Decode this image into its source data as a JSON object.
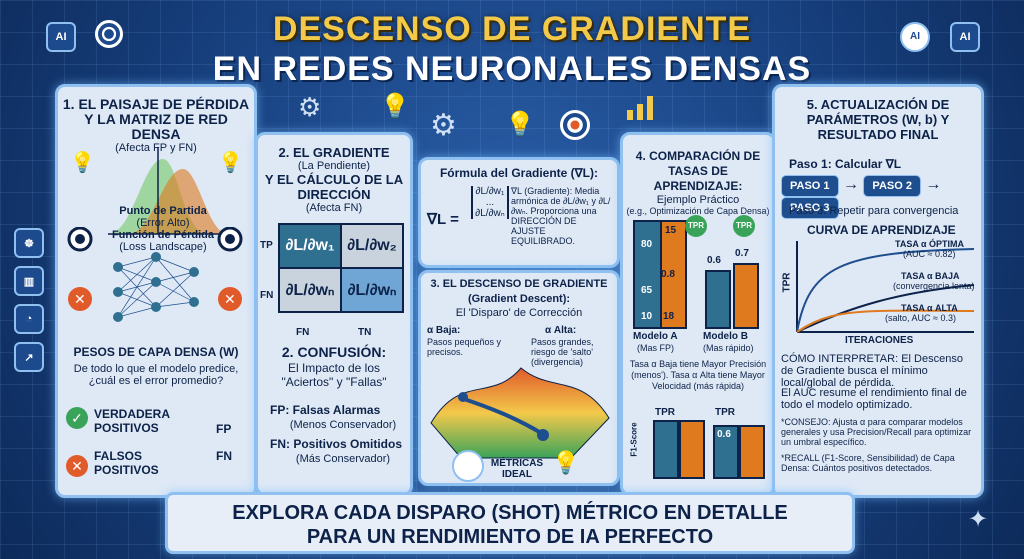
{
  "header": {
    "title_line1": "DESCENSO DE GRADIENTE",
    "title_line2": "EN REDES NEURONALES DENSAS",
    "badge_left": "AI",
    "badge_right": "AI"
  },
  "panel1": {
    "title": "1. EL PAISAJE DE PÉRDIDA Y LA MATRIZ DE RED DENSA",
    "subtitle": "(Afecta FP y FN)",
    "start_label": "Punto de Partida",
    "start_sub": "(Error Alto)",
    "loss_label": "Función de Pérdida",
    "loss_sub": "(Loss Landscape)",
    "weights_title": "PESOS DE CAPA DENSA (W)",
    "weights_text": "De todo lo que el modelo predice, ¿cuál es el error promedio?",
    "tp_label": "VERDADERA POSITIVOS",
    "fp_label": "FALSOS POSITIVOS",
    "fp_tag": "FP",
    "fn_tag": "FN"
  },
  "panel2": {
    "title_a": "2. EL GRADIENTE",
    "title_b": "(La Pendiente)",
    "title_c": "Y EL CÁLCULO DE LA DIRECCIÓN",
    "title_d": "(Afecta FN)",
    "row_labels": [
      "TP",
      "FN"
    ],
    "col_labels": [
      "FN",
      "TN"
    ],
    "cells": [
      "∂L/∂w₁",
      "∂L/∂w₂",
      "∂L/∂wₙ",
      "∂L/∂wₙ"
    ],
    "conf_title": "2. CONFUSIÓN:",
    "conf_text": "El Impacto de los \"Aciertos\" y \"Fallas\"",
    "fp_line": "FP: Falsas Alarmas",
    "fp_sub": "(Menos Conservador)",
    "fn_line": "FN: Positivos Omitidos",
    "fn_sub": "(Más Conservador)"
  },
  "panel3": {
    "formula_title": "Fórmula del Gradiente (∇L):",
    "lhs": "∇L =",
    "vec": [
      "∂L/∂w₁",
      "...",
      "∂L/∂wₙ"
    ],
    "desc": "∇L (Gradiente): Media armónica de ∂L/∂w₁ y ∂L/∂wₙ. Proporciona una DIRECCIÓN DE AJUSTE EQUILIBRADO.",
    "descent_title": "3. EL DESCENSO DE GRADIENTE (Gradient Descent):",
    "descent_sub": "El 'Disparo' de Corrección",
    "low": "α Baja:",
    "low_sub": "Pasos pequeños y precisos.",
    "high": "α Alta:",
    "high_sub": "Pasos grandes, riesgo de 'salto' (divergencia)",
    "ideal": "MÉTRICAS IDEAL"
  },
  "panel4": {
    "title": "4. COMPARACIÓN DE TASAS DE APRENDIZAJE:",
    "subtitle": "Ejemplo Práctico",
    "note": "(e.g., Optimización de Capa Densa)",
    "model_a": "Modelo A",
    "model_a_sub": "(Mas FP)",
    "model_b": "Modelo B",
    "model_b_sub": "(Mas rápido)",
    "tpr": "TPR",
    "f1": "F1-Score",
    "v80": "80",
    "v15": "15",
    "v65": "65",
    "v08": "0.8",
    "v10": "10",
    "v18": "18",
    "v06": "0.6",
    "v07": "0.7",
    "v06b": "0.6",
    "text": "Tasa α Baja tiene Mayor Precisión (menos'). Tasa α Alta tiene Mayor Velocidad (más rápida)"
  },
  "panel5": {
    "title": "5. ACTUALIZACIÓN DE PARÁMETROS (W, b) Y RESULTADO FINAL",
    "step1": "Paso 1: Calcular ∇L",
    "steps": [
      "PASO 1",
      "PASO 2",
      "PASO 3"
    ],
    "step3": "Paso 3: Repetir para convergencia",
    "curve_title": "CURVA DE APRENDIZAJE",
    "ylabel": "TPR",
    "xlabel": "ITERACIONES",
    "c1": "TASA α ÓPTIMA",
    "c1s": "(AUC ≈ 0.82)",
    "c2": "TASA α BAJA",
    "c2s": "(convergencia lenta)",
    "c3": "TASA α ALTA",
    "c3s": "(salto, AUC ≈ 0.3)",
    "interp": "CÓMO INTERPRETAR: El Descenso de Gradiente busca el mínimo local/global de pérdida.",
    "auc": "El AUC resume el rendimiento final de todo el modelo optimizado.",
    "tip": "*CONSEJO: Ajusta α para comparar modelos generales y usa Precision/Recall para optimizar un umbral específico.",
    "recall": "*RECALL (F1-Score, Sensibilidad) de Capa Densa: Cuántos positivos detectados."
  },
  "footer": {
    "line1": "EXPLORA CADA DISPARO (SHOT) MÉTRICO EN DETALLE",
    "line2": "PARA UN RENDIMIENTO DE IA PERFECTO"
  },
  "colors": {
    "gold": "#f3c94a",
    "navy": "#0d2248",
    "orange": "#e07a1f",
    "teal": "#2f6f90",
    "green": "#3aa35a",
    "red": "#e05a2a"
  }
}
